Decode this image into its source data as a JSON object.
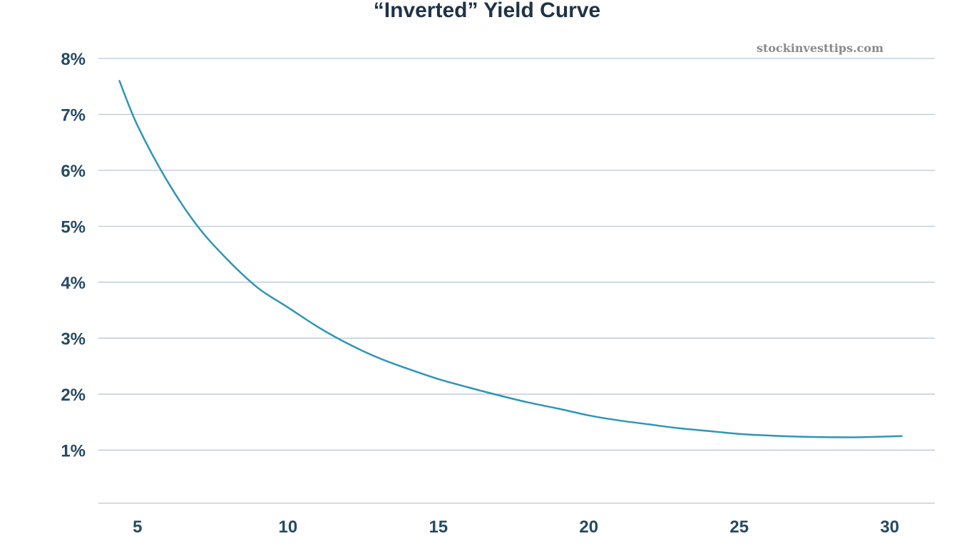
{
  "watermark": "stockinvesttips.com",
  "chart_data": {
    "type": "line",
    "title": "“Inverted” Yield Curve",
    "xlabel": "",
    "ylabel": "",
    "xlim": [
      3.7,
      31.5
    ],
    "ylim": [
      0.05,
      8.0
    ],
    "x_ticks": [
      5,
      10,
      15,
      20,
      25,
      30
    ],
    "y_ticks": [
      1,
      2,
      3,
      4,
      5,
      6,
      7,
      8
    ],
    "x_tick_labels": [
      "5",
      "10",
      "15",
      "20",
      "25",
      "30"
    ],
    "y_tick_labels": [
      "1%",
      "2%",
      "3%",
      "4%",
      "5%",
      "6%",
      "7%",
      "8%"
    ],
    "grid": true,
    "legend": "none",
    "colors": {
      "line": "#2f95b6",
      "grid": "#b9c8d6",
      "tick_text": "#244a63",
      "title_text": "#1f3347"
    },
    "series": [
      {
        "x": [
          4.4,
          5,
          6,
          7,
          8,
          9,
          10,
          11,
          12,
          13,
          14,
          15,
          16,
          17,
          18,
          19,
          20,
          21,
          22,
          23,
          24,
          25,
          26,
          27,
          28,
          29,
          30.4
        ],
        "y": [
          7.6,
          6.8,
          5.8,
          5.0,
          4.4,
          3.9,
          3.55,
          3.2,
          2.9,
          2.65,
          2.45,
          2.27,
          2.12,
          1.98,
          1.85,
          1.74,
          1.62,
          1.53,
          1.46,
          1.39,
          1.34,
          1.29,
          1.26,
          1.24,
          1.23,
          1.23,
          1.25
        ]
      }
    ]
  }
}
